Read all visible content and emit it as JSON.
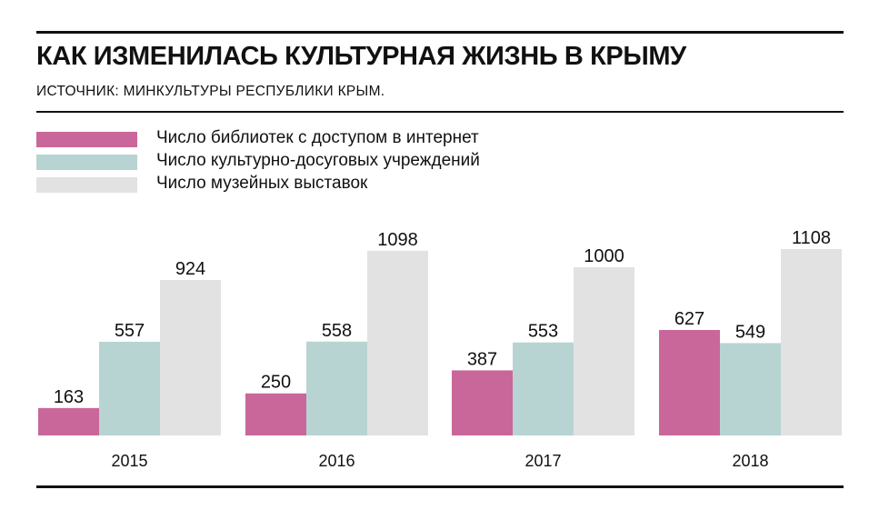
{
  "header": {
    "title": "КАК ИЗМЕНИЛАСЬ КУЛЬТУРНАЯ ЖИЗНЬ В КРЫМУ",
    "source": "ИСТОЧНИК: МИНКУЛЬТУРЫ РЕСПУБЛИКИ КРЫМ."
  },
  "legend": {
    "items": [
      {
        "label": "Число библиотек с доступом в интернет",
        "color": "#c9679a"
      },
      {
        "label": "Число культурно-досуговых учреждений",
        "color": "#b8d4d2"
      },
      {
        "label": "Число музейных выставок",
        "color": "#e2e2e2"
      }
    ]
  },
  "chart_data": {
    "type": "bar",
    "categories": [
      "2015",
      "2016",
      "2017",
      "2018"
    ],
    "series": [
      {
        "name": "Число библиотек с доступом в интернет",
        "values": [
          163,
          250,
          387,
          627
        ],
        "color": "#c9679a"
      },
      {
        "name": "Число культурно-досуговых учреждений",
        "values": [
          557,
          558,
          553,
          549
        ],
        "color": "#b8d4d2"
      },
      {
        "name": "Число музейных выставок",
        "values": [
          924,
          1098,
          1000,
          1108
        ],
        "color": "#e2e2e2"
      }
    ],
    "title": "КАК ИЗМЕНИЛАСЬ КУЛЬТУРНАЯ ЖИЗНЬ В КРЫМУ",
    "data_labels": true,
    "grid": false,
    "legend_position": "top-left"
  }
}
